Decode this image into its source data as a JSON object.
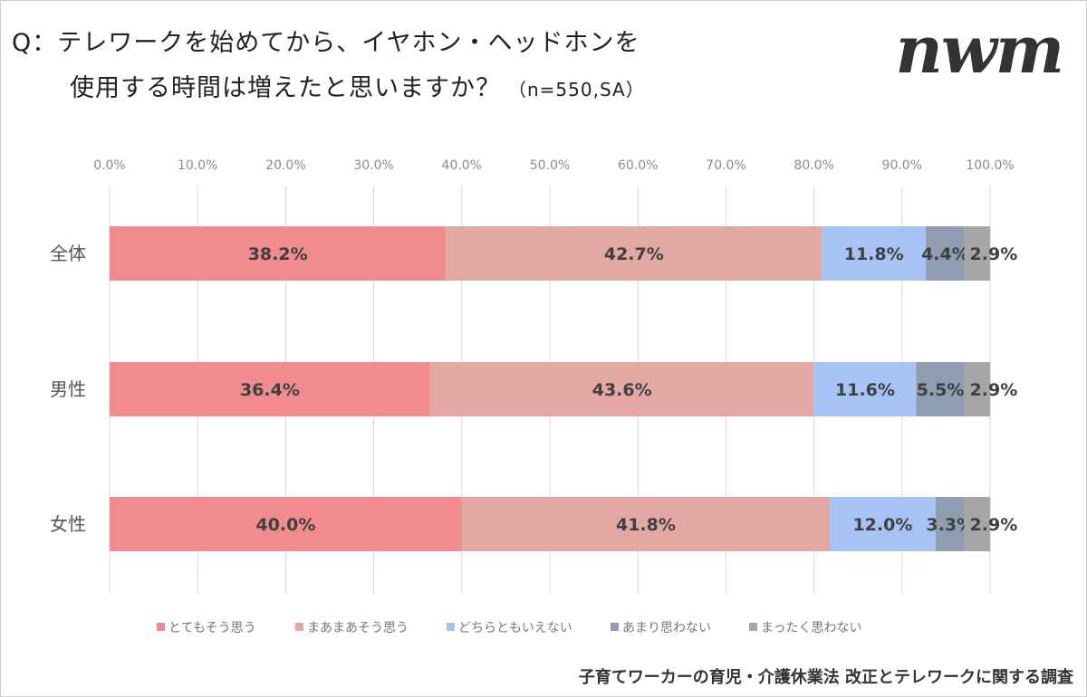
{
  "title_line1": "Q：テレワークを始めてから、イヤホン・ヘッドホンを",
  "title_line2": "使用する時間は増えたと思いますか？",
  "sample_note": "（n=550,SA）",
  "logo_text": "nwm",
  "source": "子育てワーカーの育児・介護休業法 改正とテレワークに関する調査",
  "chart_data": {
    "type": "bar",
    "orientation": "horizontal",
    "stacked": true,
    "categories": [
      "全体",
      "男性",
      "女性"
    ],
    "x_ticks": [
      "0.0%",
      "10.0%",
      "20.0%",
      "30.0%",
      "40.0%",
      "50.0%",
      "60.0%",
      "70.0%",
      "80.0%",
      "90.0%",
      "100.0%"
    ],
    "xlim": [
      0,
      100
    ],
    "grid": true,
    "legend_position": "bottom",
    "series": [
      {
        "name": "とてもそう思う",
        "color": "#f28b8e",
        "values": [
          38.2,
          36.4,
          40.0
        ],
        "labels": [
          "38.2%",
          "36.4%",
          "40.0%"
        ]
      },
      {
        "name": "まあまあそう思う",
        "color": "#e4a8a4",
        "values": [
          42.7,
          43.6,
          41.8
        ],
        "labels": [
          "42.7%",
          "43.6%",
          "41.8%"
        ]
      },
      {
        "name": "どちらともいえない",
        "color": "#a7c2f5",
        "values": [
          11.8,
          11.6,
          12.0
        ],
        "labels": [
          "11.8%",
          "11.6%",
          "12.0%"
        ]
      },
      {
        "name": "あまり思わない",
        "color": "#8e9db2",
        "values": [
          4.4,
          5.5,
          3.3
        ],
        "labels": [
          "4.4%",
          "5.5%",
          "3.3%"
        ]
      },
      {
        "name": "まったく思わない",
        "color": "#a6a6a6",
        "values": [
          2.9,
          2.9,
          2.9
        ],
        "labels": [
          "2.9%",
          "2.9%",
          "2.9%"
        ]
      }
    ]
  }
}
